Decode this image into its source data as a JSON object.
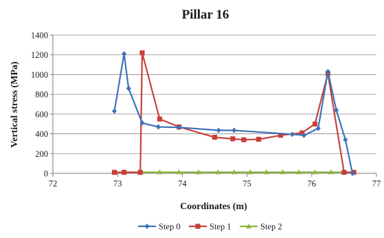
{
  "chart_data": {
    "type": "line",
    "title": "Pillar 16",
    "xlabel": "Coordinates (m)",
    "ylabel": "Vertical stress (MPa)",
    "xlim": [
      72,
      77
    ],
    "ylim": [
      0,
      1400
    ],
    "xticks": [
      72,
      73,
      74,
      75,
      76,
      77
    ],
    "yticks": [
      0,
      200,
      400,
      600,
      800,
      1000,
      1200,
      1400
    ],
    "grid": "horizontal",
    "legend_position": "bottom",
    "series": [
      {
        "name": "Step 0",
        "color": "#3d72b8",
        "marker": "diamond",
        "x": [
          72.95,
          73.1,
          73.17,
          73.38,
          73.63,
          73.95,
          74.56,
          74.8,
          75.7,
          75.88,
          76.1,
          76.25,
          76.38,
          76.52,
          76.63
        ],
        "y": [
          630,
          1210,
          860,
          510,
          470,
          465,
          435,
          435,
          395,
          385,
          455,
          1030,
          640,
          340,
          0
        ]
      },
      {
        "name": "Step 1",
        "color": "#c9403a",
        "marker": "square",
        "x": [
          72.95,
          73.1,
          73.35,
          73.38,
          73.65,
          73.95,
          74.5,
          74.78,
          74.95,
          75.18,
          75.52,
          75.85,
          76.05,
          76.25,
          76.5,
          76.65
        ],
        "y": [
          10,
          10,
          10,
          1220,
          550,
          470,
          365,
          350,
          340,
          345,
          385,
          410,
          500,
          1010,
          10,
          10
        ]
      },
      {
        "name": "Step 2",
        "color": "#8cb83f",
        "marker": "triangle",
        "x": [
          72.95,
          73.1,
          73.35,
          73.65,
          73.95,
          74.25,
          74.55,
          74.8,
          75.05,
          75.3,
          75.55,
          75.8,
          76.05,
          76.3,
          76.5,
          76.65
        ],
        "y": [
          12,
          12,
          12,
          12,
          12,
          12,
          12,
          12,
          12,
          12,
          12,
          12,
          12,
          12,
          12,
          12
        ]
      }
    ]
  }
}
